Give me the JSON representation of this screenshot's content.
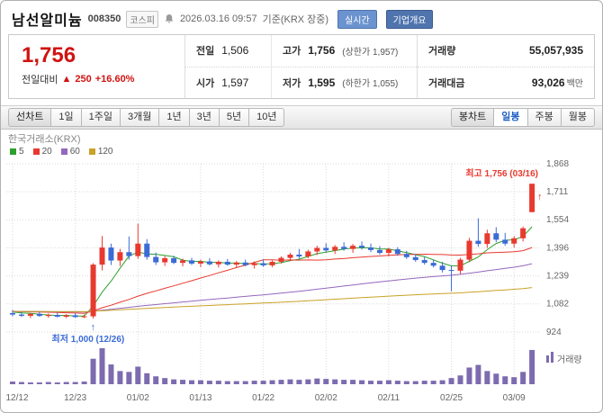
{
  "header": {
    "title": "남선알미늄",
    "code": "008350",
    "market_badge": "코스피",
    "datetime": "2026.03.16 09:57",
    "datetime_note": "기준(KRX 장중)",
    "realtime_button": "실시간",
    "overview_button": "기업개요"
  },
  "price_box": {
    "current": "1,756",
    "change_label": "전일대비",
    "change_arrow": "▲",
    "change_value": "250",
    "change_percent": "+16.60%",
    "cells": {
      "prev_label": "전일",
      "prev_value": "1,506",
      "high_label": "고가",
      "high_value": "1,756",
      "high_limit": "(상한가 1,957)",
      "open_label": "시가",
      "open_value": "1,597",
      "low_label": "저가",
      "low_value": "1,595",
      "low_limit": "(하한가 1,055)",
      "volume_label": "거래량",
      "volume_value": "55,057,935",
      "amount_label": "거래대금",
      "amount_value": "93,026",
      "amount_unit": "백만"
    }
  },
  "toolbar": {
    "period_tabs": [
      "선차트",
      "1일",
      "1주일",
      "3개월",
      "1년",
      "3년",
      "5년",
      "10년"
    ],
    "candle_tabs": [
      "봉차트",
      "일봉",
      "주봉",
      "월봉"
    ],
    "selected_candle_tab": "일봉"
  },
  "chart": {
    "source": "한국거래소(KRX)",
    "legend": [
      {
        "label": "5",
        "color": "#2ca02c"
      },
      {
        "label": "20",
        "color": "#e8392f"
      },
      {
        "label": "60",
        "color": "#9467bd"
      },
      {
        "label": "120",
        "color": "#c9a227"
      }
    ],
    "high_annotation": "최고 1,756 (03/16)",
    "low_annotation": "최저 1,000 (12/26)",
    "volume_label": "거래량",
    "colors": {
      "up": "#e8392f",
      "down": "#3b6bd6",
      "grid": "#d9d9d9",
      "volume": "#7d6bb0",
      "axis_text": "#666666"
    }
  },
  "chart_data": {
    "type": "candlestick",
    "title": "남선알미늄 일봉 차트",
    "y_ticks": [
      1868,
      1711,
      1554,
      1396,
      1239,
      1082,
      924
    ],
    "y_tick_labels": [
      "1,868",
      "1,711",
      "1,554",
      "1,396",
      "1,239",
      "1,082",
      "924"
    ],
    "ylim": [
      924,
      1868
    ],
    "x_ticks": [
      {
        "label": "12/12",
        "index": 0
      },
      {
        "label": "12/23",
        "index": 7
      },
      {
        "label": "01/02",
        "index": 14
      },
      {
        "label": "01/13",
        "index": 21
      },
      {
        "label": "01/22",
        "index": 28
      },
      {
        "label": "02/02",
        "index": 35
      },
      {
        "label": "02/11",
        "index": 42
      },
      {
        "label": "02/25",
        "index": 49
      },
      {
        "label": "03/09",
        "index": 56
      }
    ],
    "high_point": {
      "price": 1756,
      "date": "03/16"
    },
    "low_point": {
      "price": 1000,
      "date": "12/26"
    },
    "ma_windows": [
      5,
      20,
      60,
      120
    ],
    "candles_format": [
      "open",
      "high",
      "low",
      "close",
      "volume"
    ],
    "candles": [
      [
        1030,
        1048,
        1012,
        1022,
        6
      ],
      [
        1022,
        1036,
        1008,
        1015,
        5
      ],
      [
        1015,
        1030,
        1002,
        1026,
        4
      ],
      [
        1026,
        1038,
        1010,
        1014,
        4
      ],
      [
        1014,
        1028,
        1004,
        1020,
        5
      ],
      [
        1020,
        1032,
        1006,
        1010,
        4
      ],
      [
        1010,
        1024,
        1002,
        1018,
        5
      ],
      [
        1018,
        1030,
        1004,
        1008,
        5
      ],
      [
        1008,
        1022,
        1002,
        1012,
        6
      ],
      [
        1012,
        1310,
        1000,
        1302,
        58
      ],
      [
        1302,
        1462,
        1270,
        1398,
        82
      ],
      [
        1398,
        1420,
        1300,
        1325,
        45
      ],
      [
        1325,
        1390,
        1295,
        1372,
        30
      ],
      [
        1372,
        1460,
        1330,
        1350,
        28
      ],
      [
        1350,
        1532,
        1335,
        1420,
        40
      ],
      [
        1420,
        1445,
        1330,
        1345,
        25
      ],
      [
        1345,
        1370,
        1300,
        1315,
        18
      ],
      [
        1315,
        1350,
        1295,
        1338,
        14
      ],
      [
        1338,
        1352,
        1305,
        1312,
        11
      ],
      [
        1312,
        1336,
        1292,
        1326,
        10
      ],
      [
        1326,
        1340,
        1300,
        1308,
        9
      ],
      [
        1308,
        1330,
        1288,
        1320,
        9
      ],
      [
        1320,
        1338,
        1298,
        1304,
        8
      ],
      [
        1304,
        1326,
        1286,
        1318,
        8
      ],
      [
        1318,
        1334,
        1296,
        1302,
        7
      ],
      [
        1302,
        1322,
        1284,
        1314,
        7
      ],
      [
        1314,
        1330,
        1292,
        1299,
        7
      ],
      [
        1299,
        1320,
        1280,
        1310,
        8
      ],
      [
        1310,
        1332,
        1290,
        1298,
        8
      ],
      [
        1298,
        1326,
        1288,
        1318,
        9
      ],
      [
        1318,
        1348,
        1308,
        1340,
        10
      ],
      [
        1340,
        1368,
        1322,
        1358,
        11
      ],
      [
        1358,
        1390,
        1336,
        1348,
        10
      ],
      [
        1348,
        1386,
        1338,
        1376,
        11
      ],
      [
        1376,
        1408,
        1356,
        1396,
        13
      ],
      [
        1396,
        1422,
        1370,
        1382,
        12
      ],
      [
        1382,
        1412,
        1362,
        1402,
        11
      ],
      [
        1402,
        1428,
        1380,
        1390,
        10
      ],
      [
        1390,
        1418,
        1368,
        1408,
        10
      ],
      [
        1408,
        1432,
        1386,
        1398,
        9
      ],
      [
        1398,
        1420,
        1372,
        1384,
        8
      ],
      [
        1384,
        1406,
        1358,
        1368,
        8
      ],
      [
        1368,
        1396,
        1348,
        1388,
        9
      ],
      [
        1388,
        1400,
        1352,
        1362,
        8
      ],
      [
        1362,
        1380,
        1334,
        1344,
        7
      ],
      [
        1344,
        1362,
        1318,
        1328,
        7
      ],
      [
        1328,
        1346,
        1302,
        1312,
        8
      ],
      [
        1312,
        1330,
        1286,
        1296,
        8
      ],
      [
        1296,
        1318,
        1258,
        1272,
        9
      ],
      [
        1272,
        1298,
        1152,
        1268,
        14
      ],
      [
        1268,
        1340,
        1250,
        1330,
        20
      ],
      [
        1330,
        1452,
        1316,
        1436,
        38
      ],
      [
        1436,
        1562,
        1402,
        1418,
        44
      ],
      [
        1418,
        1498,
        1396,
        1478,
        30
      ],
      [
        1478,
        1512,
        1428,
        1442,
        24
      ],
      [
        1442,
        1480,
        1408,
        1420,
        18
      ],
      [
        1420,
        1462,
        1398,
        1450,
        16
      ],
      [
        1450,
        1516,
        1432,
        1506,
        28
      ],
      [
        1597,
        1756,
        1595,
        1756,
        78
      ]
    ]
  }
}
